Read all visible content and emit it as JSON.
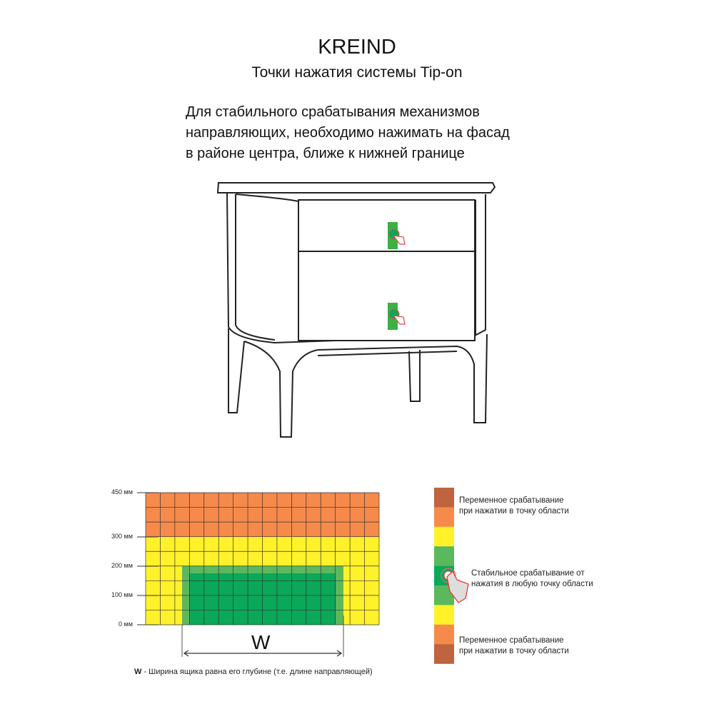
{
  "header": {
    "brand": "KREIND",
    "subtitle": "Точки нажатия системы Tip-on"
  },
  "description": [
    "Для стабильного срабатывания механизмов",
    "направляющих, необходимо нажимать на фасад",
    "в районе центра, ближе к нижней границе"
  ],
  "diagram": {
    "y_ticks": [
      "450 мм",
      "300 мм",
      "200 мм",
      "100 мм",
      "0 мм"
    ],
    "width_label": "W",
    "width_note_key": "W",
    "width_note": " - Ширина ящика равна его глубине (т.е. длине направляющей)",
    "colors": {
      "orange": "#f58a4b",
      "yellow": "#fff22a",
      "green_light": "#5cb85c",
      "green_dark": "#0aa859",
      "brown": "#c0633f"
    }
  },
  "legend": {
    "variable_top": [
      "Переменное срабатывание",
      "при нажатии в точку области"
    ],
    "stable": [
      "Стабильное срабатывание от",
      "нажатия в любую точку области"
    ],
    "variable_bottom": [
      "Переменное срабатывание",
      "при нажатии в точку области"
    ]
  }
}
